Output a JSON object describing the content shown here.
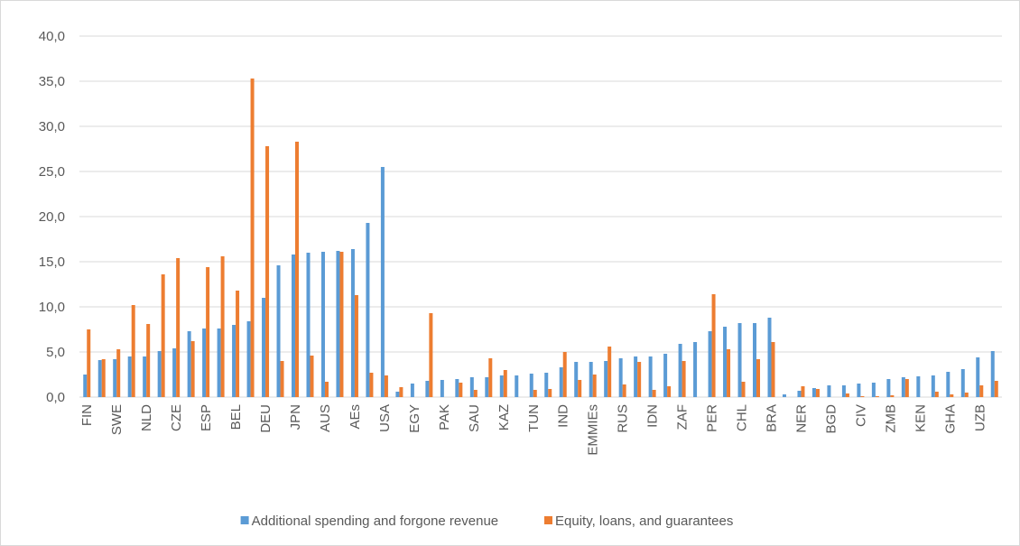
{
  "chart_data": {
    "type": "bar",
    "categories": [
      "FIN",
      null,
      "SWE",
      null,
      "NLD",
      null,
      "CZE",
      null,
      "ESP",
      null,
      "BEL",
      null,
      "DEU",
      null,
      "JPN",
      null,
      "AUS",
      null,
      "AEs",
      null,
      "USA",
      null,
      "EGY",
      null,
      "PAK",
      null,
      "SAU",
      null,
      "KAZ",
      null,
      "TUN",
      null,
      "IND",
      null,
      "EMMIEs",
      null,
      "RUS",
      null,
      "IDN",
      null,
      "ZAF",
      null,
      "PER",
      null,
      "CHL",
      null,
      "BRA",
      null,
      "NER",
      null,
      "BGD",
      null,
      "CIV",
      null,
      "ZMB",
      null,
      "KEN",
      null,
      "GHA",
      null,
      "UZB",
      null
    ],
    "series": [
      {
        "name": "Additional spending and forgone revenue",
        "color": "#5b9bd5",
        "values": [
          2.5,
          4.1,
          4.2,
          4.5,
          4.5,
          5.1,
          5.4,
          7.3,
          7.6,
          7.6,
          8.0,
          8.4,
          11.0,
          14.6,
          15.8,
          16.0,
          16.1,
          16.2,
          16.4,
          19.3,
          25.5,
          0.6,
          1.5,
          1.8,
          1.9,
          2.0,
          2.2,
          2.2,
          2.4,
          2.4,
          2.6,
          2.7,
          3.3,
          3.9,
          3.9,
          4.0,
          4.3,
          4.5,
          4.5,
          4.8,
          5.9,
          6.1,
          7.3,
          7.8,
          8.2,
          8.2,
          8.8,
          0.3,
          0.7,
          1.0,
          1.3,
          1.3,
          1.5,
          1.6,
          2.0,
          2.2,
          2.3,
          2.4,
          2.8,
          3.1,
          4.4,
          5.1
        ]
      },
      {
        "name": "Equity, loans, and guarantees",
        "color": "#ed7d31",
        "values": [
          7.5,
          4.2,
          5.3,
          10.2,
          8.1,
          13.6,
          15.4,
          6.2,
          14.4,
          15.6,
          11.8,
          35.3,
          27.8,
          4.0,
          28.3,
          4.6,
          1.7,
          16.1,
          11.3,
          2.7,
          2.4,
          1.1,
          0,
          9.3,
          0,
          1.6,
          0.8,
          4.3,
          3.0,
          0,
          0.8,
          0.9,
          5.0,
          1.9,
          2.5,
          5.6,
          1.4,
          3.9,
          0.8,
          1.2,
          4.0,
          0,
          11.4,
          5.3,
          1.7,
          4.2,
          6.1,
          0,
          1.2,
          0.9,
          0,
          0.4,
          0.1,
          0.1,
          0.2,
          2.0,
          0,
          0.6,
          0.3,
          0.5,
          1.3,
          1.8
        ]
      }
    ],
    "ylim": [
      0,
      40
    ],
    "yticks": [
      {
        "value": 0,
        "label": "0,0"
      },
      {
        "value": 5,
        "label": "5,0"
      },
      {
        "value": 10,
        "label": "10,0"
      },
      {
        "value": 15,
        "label": "15,0"
      },
      {
        "value": 20,
        "label": "20,0"
      },
      {
        "value": 25,
        "label": "25,0"
      },
      {
        "value": 30,
        "label": "30,0"
      },
      {
        "value": 35,
        "label": "35,0"
      },
      {
        "value": 40,
        "label": "40,0"
      }
    ],
    "grid": true,
    "legend": "bottom"
  }
}
